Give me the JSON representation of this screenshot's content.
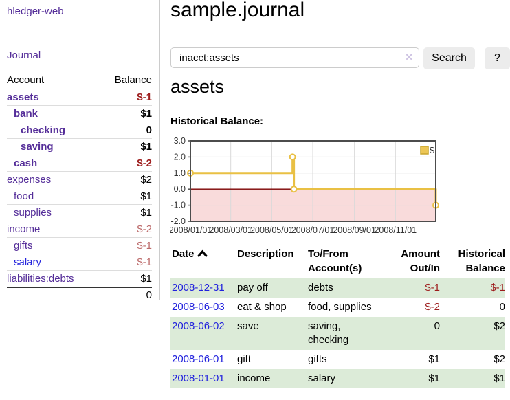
{
  "sidebar": {
    "app_title": "hledger-web",
    "journal_link": "Journal",
    "accounts_header": {
      "account": "Account",
      "balance": "Balance"
    },
    "accounts": [
      {
        "name": "assets",
        "balance": "$-1",
        "depth": 1,
        "bold": true,
        "name_color": "purple",
        "balance_color": "strong"
      },
      {
        "name": "bank",
        "balance": "$1",
        "depth": 2,
        "bold": true,
        "name_color": "purple",
        "balance_color": ""
      },
      {
        "name": "checking",
        "balance": "0",
        "depth": 3,
        "bold": true,
        "name_color": "purple",
        "balance_color": ""
      },
      {
        "name": "saving",
        "balance": "$1",
        "depth": 3,
        "bold": true,
        "name_color": "purple",
        "balance_color": ""
      },
      {
        "name": "cash",
        "balance": "$-2",
        "depth": 2,
        "bold": true,
        "name_color": "purple",
        "balance_color": "strong"
      },
      {
        "name": "expenses",
        "balance": "$2",
        "depth": 1,
        "bold": false,
        "name_color": "purple",
        "balance_color": ""
      },
      {
        "name": "food",
        "balance": "$1",
        "depth": 2,
        "bold": false,
        "name_color": "purple",
        "balance_color": ""
      },
      {
        "name": "supplies",
        "balance": "$1",
        "depth": 2,
        "bold": false,
        "name_color": "purple",
        "balance_color": ""
      },
      {
        "name": "income",
        "balance": "$-2",
        "depth": 1,
        "bold": false,
        "name_color": "purple",
        "balance_color": "soft"
      },
      {
        "name": "gifts",
        "balance": "$-1",
        "depth": 2,
        "bold": false,
        "name_color": "purple",
        "balance_color": "soft"
      },
      {
        "name": "salary",
        "balance": "$-1",
        "depth": 2,
        "bold": false,
        "name_color": "blue",
        "balance_color": "soft"
      },
      {
        "name": "liabilities:debts",
        "balance": "$1",
        "depth": 1,
        "bold": false,
        "name_color": "purple",
        "balance_color": ""
      }
    ],
    "total": "0"
  },
  "header": {
    "title": "sample.journal"
  },
  "search": {
    "query": "inacct:assets",
    "clear_icon": "✕",
    "button_label": "Search",
    "help_label": "?"
  },
  "main": {
    "account_heading": "assets",
    "section_label": "Historical Balance:"
  },
  "chart_data": {
    "type": "line",
    "title": "Historical Balance",
    "step": true,
    "legend": "$",
    "legend_position": "top-right",
    "grid": true,
    "x_range": [
      "2008-01-01",
      "2008-12-31"
    ],
    "ylim": [
      -2,
      3
    ],
    "y_ticks": [
      "3.0",
      "2.0",
      "1.0",
      "0.0",
      "-1.0",
      "-2.0"
    ],
    "y_tick_values": [
      3,
      2,
      1,
      0,
      -1,
      -2
    ],
    "x_tick_dates": [
      "2008-01-01",
      "2008-03-01",
      "2008-05-01",
      "2008-07-01",
      "2008-09-01",
      "2008-11-01"
    ],
    "x_tick_labels": [
      "2008/01/01",
      "2008/03/01",
      "2008/05/01",
      "2008/07/01",
      "2008/09/01",
      "2008/11/01"
    ],
    "series": [
      {
        "name": "$",
        "points": [
          {
            "date": "2008-01-01",
            "value": 1
          },
          {
            "date": "2008-06-01",
            "value": 2
          },
          {
            "date": "2008-06-03",
            "value": 0
          },
          {
            "date": "2008-12-31",
            "value": -1
          }
        ]
      }
    ],
    "colors": {
      "line": "#e9c044",
      "marker_fill": "#ffffff",
      "legend_fill": "#ecc655",
      "legend_border": "#c9a52f",
      "negative_region": "#f9dbdb",
      "zero_line": "#7d0000",
      "grid": "#d9d9d9",
      "border": "#4c4c4c",
      "tick_text": "#333333"
    }
  },
  "register": {
    "columns": [
      "Date",
      "Description",
      "To/From Account(s)",
      "Amount Out/In",
      "Historical Balance"
    ],
    "rows": [
      {
        "date": "2008-12-31",
        "description": "pay off",
        "tofrom": "debts",
        "amount": "$-1",
        "balance": "$-1",
        "amount_neg": true,
        "balance_neg": true
      },
      {
        "date": "2008-06-03",
        "description": "eat & shop",
        "tofrom": "food, supplies",
        "amount": "$-2",
        "balance": "0",
        "amount_neg": true,
        "balance_neg": false
      },
      {
        "date": "2008-06-02",
        "description": "save",
        "tofrom": "saving, checking",
        "amount": "0",
        "balance": "$2",
        "amount_neg": false,
        "balance_neg": false
      },
      {
        "date": "2008-06-01",
        "description": "gift",
        "tofrom": "gifts",
        "amount": "$1",
        "balance": "$2",
        "amount_neg": false,
        "balance_neg": false
      },
      {
        "date": "2008-01-01",
        "description": "income",
        "tofrom": "salary",
        "amount": "$1",
        "balance": "$1",
        "amount_neg": false,
        "balance_neg": false
      }
    ]
  }
}
